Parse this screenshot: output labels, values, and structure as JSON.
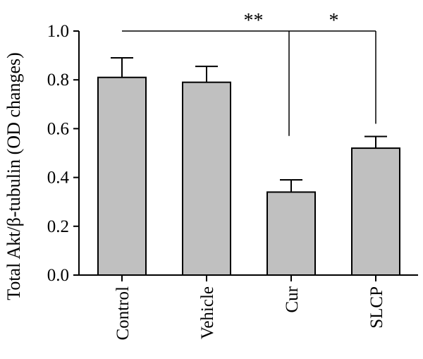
{
  "chart_data": {
    "type": "bar",
    "categories": [
      "Control",
      "Vehicle",
      "Cur",
      "SLCP"
    ],
    "values": [
      0.81,
      0.79,
      0.34,
      0.52
    ],
    "errors": [
      0.08,
      0.065,
      0.05,
      0.048
    ],
    "ylabel": "Total Akt/β-tubulin (OD changes)",
    "ylim": [
      0,
      1.0
    ],
    "yticks": [
      "0.0",
      "0.2",
      "0.4",
      "0.6",
      "0.8",
      "1.0"
    ],
    "significance": [
      {
        "from": "Control",
        "to": "Cur",
        "label": "**"
      },
      {
        "from": "Cur",
        "to": "SLCP",
        "label": "*"
      }
    ],
    "bar_color": "#c0c0c0",
    "grid": false
  }
}
